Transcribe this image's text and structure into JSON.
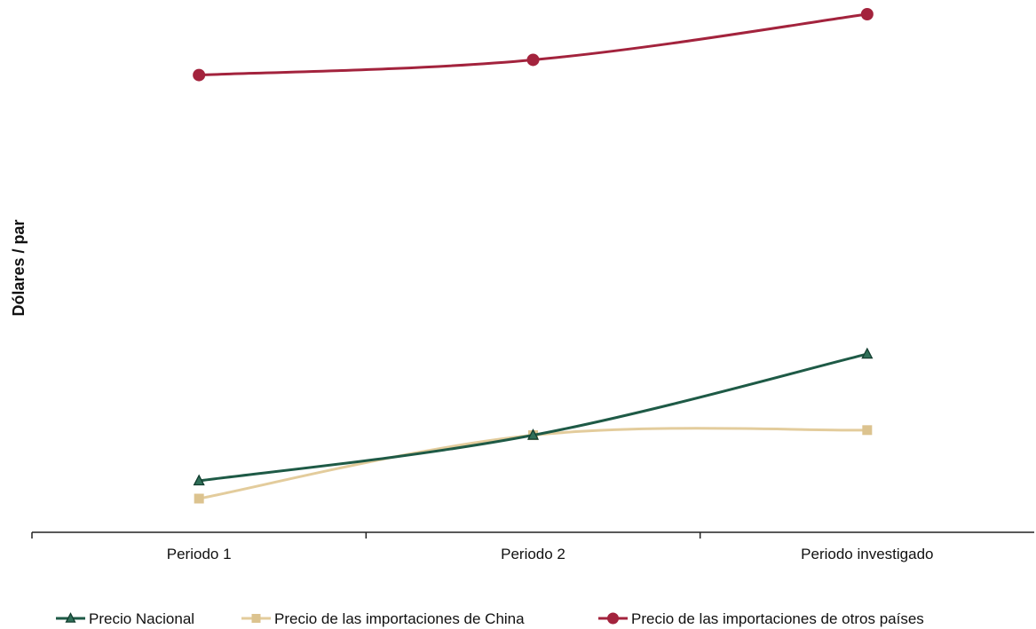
{
  "chart_data": {
    "type": "line",
    "title": "",
    "xlabel": "",
    "ylabel": "Dólares / par",
    "categories": [
      "Periodo 1",
      "Periodo 2",
      "Periodo investigado"
    ],
    "ylim": [
      0,
      100
    ],
    "y_ticks_shown": false,
    "grid": false,
    "legend_position": "bottom",
    "series": [
      {
        "name": "Precio Nacional",
        "values": [
          10,
          19,
          35
        ],
        "color": "#1e5a46",
        "marker": "triangle",
        "marker_fill": "#2f6f58"
      },
      {
        "name": "Precio de las importaciones de China",
        "values": [
          6.5,
          19,
          20
        ],
        "color": "#e3cc9c",
        "marker": "square",
        "marker_fill": "#dcc38f"
      },
      {
        "name": "Precio de las importaciones de otros países",
        "values": [
          90,
          93,
          102
        ],
        "color": "#a3233d",
        "marker": "circle",
        "marker_fill": "#a3233d"
      }
    ]
  }
}
